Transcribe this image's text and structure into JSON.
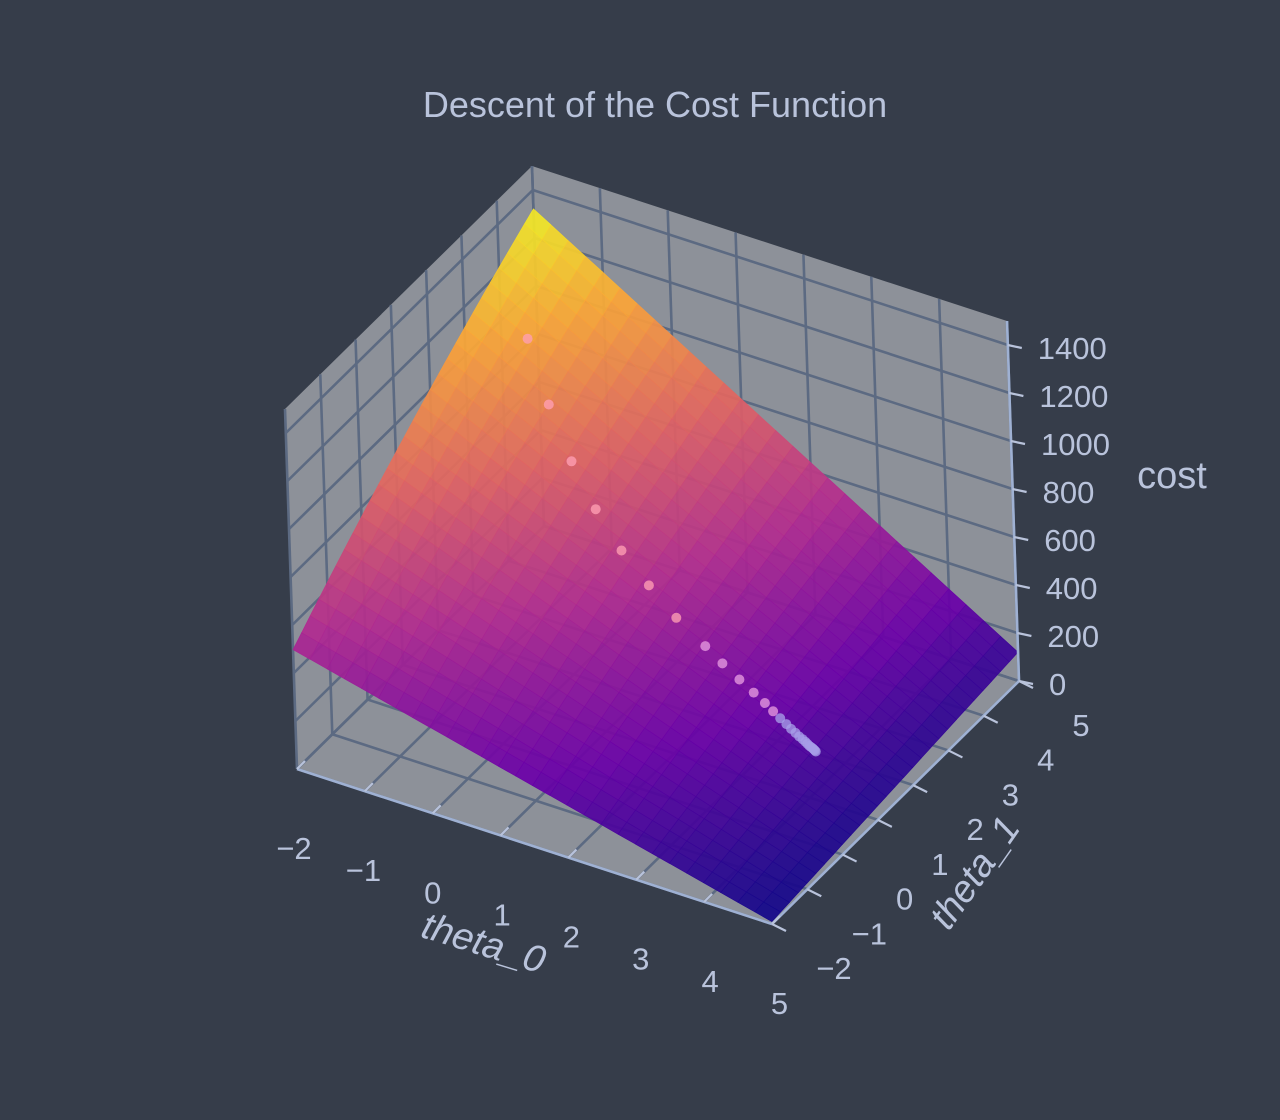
{
  "chart_data": {
    "type": "surface",
    "title": "Descent of the Cost Function",
    "xlabel": "theta_0",
    "ylabel": "theta_1",
    "zlabel": "cost",
    "xlim": [
      -2,
      5
    ],
    "ylim": [
      -2,
      5
    ],
    "zlim": [
      0,
      1500
    ],
    "x_ticks": [
      "−2",
      "−1",
      "0",
      "1",
      "2",
      "3",
      "4",
      "5"
    ],
    "y_ticks": [
      "−2",
      "−1",
      "0",
      "1",
      "2",
      "3",
      "4",
      "5"
    ],
    "z_ticks": [
      "0",
      "200",
      "400",
      "600",
      "800",
      "1000",
      "1200",
      "1400"
    ],
    "surface": {
      "description_of_values": "cost over theta_0 and theta_1, bowl-shaped minimum near theta_0≈4, theta_1≈0",
      "corner_costs": {
        "theta0_-2_theta1_-2": 540,
        "theta0_-2_theta1_5": 1350,
        "theta0_5_theta1_-2": 10,
        "theta0_5_theta1_5": 120
      },
      "colormap": [
        "#0d0887",
        "#6a00a8",
        "#b12a90",
        "#e16462",
        "#fca636",
        "#f0f921"
      ]
    },
    "series": [
      {
        "type": "scatter3d",
        "theta_0": [
          -1.5,
          -1.0,
          -0.5,
          0.0,
          0.5,
          1.0,
          1.5,
          2.0,
          2.3,
          2.6,
          2.85,
          3.05,
          3.2,
          3.33,
          3.44,
          3.53,
          3.61,
          3.68,
          3.74,
          3.79,
          3.83,
          3.87,
          3.9,
          3.93,
          3.95,
          3.97,
          3.99
        ],
        "theta_1": [
          3.8,
          3.4,
          3.05,
          2.75,
          2.5,
          2.3,
          2.1,
          1.95,
          1.85,
          1.75,
          1.67,
          1.6,
          1.54,
          1.49,
          1.45,
          1.41,
          1.38,
          1.35,
          1.33,
          1.31,
          1.29,
          1.27,
          1.26,
          1.25,
          1.24,
          1.23,
          1.22
        ],
        "cost": [
          1000,
          830,
          690,
          580,
          490,
          420,
          360,
          310,
          280,
          255,
          235,
          220,
          208,
          198,
          190,
          184,
          179,
          175,
          172,
          169,
          167,
          165,
          164,
          163,
          162,
          161,
          160
        ]
      }
    ],
    "colors": {
      "background": "#363d4a",
      "pane": "#8d9199",
      "grid": "#5c6a82",
      "text": "#b9c3db",
      "axis_line": "#9fb1d3",
      "points": "#ffb0c0"
    }
  }
}
